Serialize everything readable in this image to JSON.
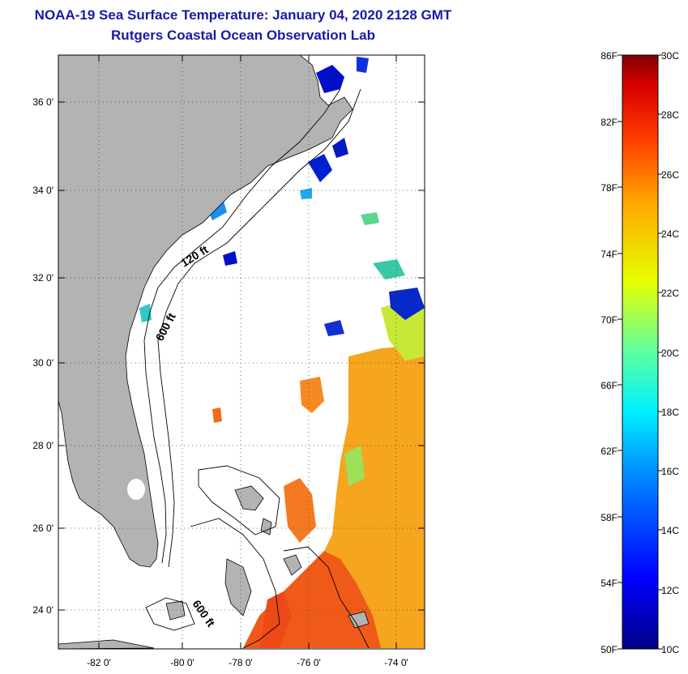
{
  "header": {
    "title": "NOAA-19 Sea Surface Temperature:  January 04, 2020 2128 GMT",
    "subtitle": "Rutgers Coastal Ocean Observation Lab"
  },
  "map": {
    "lon_ticks": [
      "-82 0'",
      "-80 0'",
      "-78 0'",
      "-76 0'",
      "-74 0'"
    ],
    "lat_ticks": [
      "36 0'",
      "34 0'",
      "32 0'",
      "30 0'",
      "28 0'",
      "26 0'",
      "24 0'"
    ],
    "contour_labels": [
      "120 ft",
      "600 ft",
      "600 ft"
    ]
  },
  "colorbar": {
    "f_labels": [
      "86F",
      "82F",
      "78F",
      "74F",
      "70F",
      "66F",
      "62F",
      "58F",
      "54F",
      "50F"
    ],
    "c_labels": [
      "30C",
      "28C",
      "26C",
      "24C",
      "22C",
      "20C",
      "18C",
      "16C",
      "14C",
      "12C",
      "10C"
    ]
  },
  "colors": {
    "land": "#b3b3b3",
    "title": "#1a1aa6",
    "cold": "#00008b",
    "warm": "#8b0000"
  }
}
